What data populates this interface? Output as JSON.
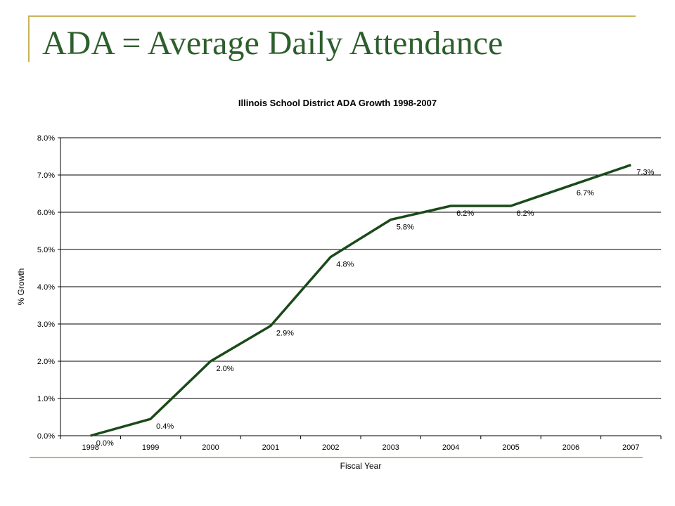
{
  "slide": {
    "title": "ADA = Average Daily Attendance",
    "accent_color": "#c9b45a",
    "title_color": "#2d5f2d"
  },
  "chart_data": {
    "type": "line",
    "title": "Illinois School District ADA Growth 1998-2007",
    "xlabel": "Fiscal Year",
    "ylabel": "% Growth",
    "categories": [
      "1998",
      "1999",
      "2000",
      "2001",
      "2002",
      "2003",
      "2004",
      "2005",
      "2006",
      "2007"
    ],
    "series": [
      {
        "values": [
          0.0,
          0.45,
          2.0,
          2.95,
          4.8,
          5.8,
          6.17,
          6.17,
          6.72,
          7.27
        ],
        "data_labels": [
          "0.0%",
          "0.4%",
          "2.0%",
          "2.9%",
          "4.8%",
          "5.8%",
          "6.2%",
          "6.2%",
          "6.7%",
          "7.3%"
        ],
        "color": "#1a4a1a"
      }
    ],
    "ylim": [
      0,
      8
    ],
    "y_ticks": [
      0,
      1,
      2,
      3,
      4,
      5,
      6,
      7,
      8
    ],
    "y_tick_labels": [
      "0.0%",
      "1.0%",
      "2.0%",
      "3.0%",
      "4.0%",
      "5.0%",
      "6.0%",
      "7.0%",
      "8.0%"
    ],
    "grid": true,
    "legend": false
  }
}
